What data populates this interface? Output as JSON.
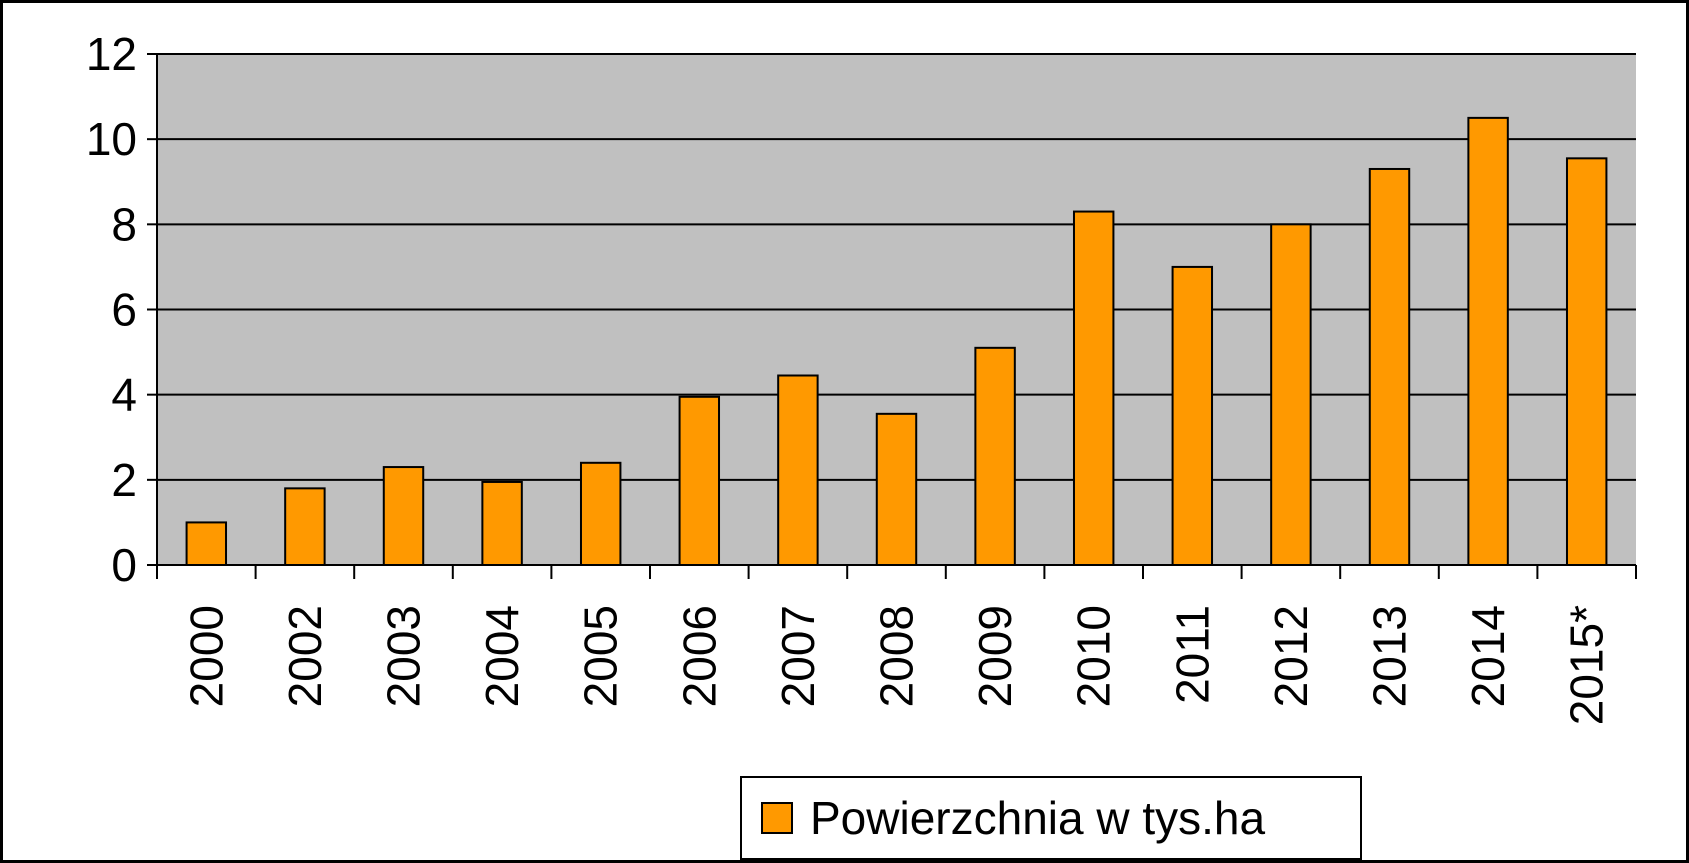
{
  "chart_data": {
    "type": "bar",
    "categories": [
      "2000",
      "2002",
      "2003",
      "2004",
      "2005",
      "2006",
      "2007",
      "2008",
      "2009",
      "2010",
      "2011",
      "2012",
      "2013",
      "2014",
      "2015*"
    ],
    "series": [
      {
        "name": "Powierzchnia w tys.ha",
        "color": "#ff9900",
        "values": [
          1.0,
          1.8,
          2.3,
          1.95,
          2.4,
          3.95,
          4.45,
          3.55,
          5.1,
          8.3,
          7.0,
          8.0,
          9.3,
          10.5,
          9.55
        ]
      }
    ],
    "ylim": [
      0,
      12
    ],
    "yticks": [
      0,
      2,
      4,
      6,
      8,
      10,
      12
    ],
    "grid": true,
    "legend": "bottom"
  }
}
